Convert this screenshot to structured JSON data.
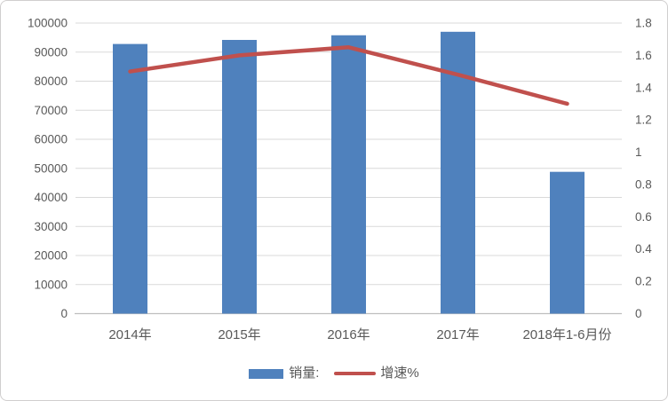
{
  "chart_data": {
    "type": "bar",
    "subtype": "combo-bar-line-dual-axis",
    "title": "",
    "categories": [
      "2014年",
      "2015年",
      "2016年",
      "2017年",
      "2018年1-6月份"
    ],
    "series": [
      {
        "name": "销量:",
        "chart_type": "bar",
        "axis": "left",
        "color": "#4f81bd",
        "values": [
          92800,
          94200,
          95800,
          97000,
          48800
        ]
      },
      {
        "name": "增速%",
        "chart_type": "line",
        "axis": "right",
        "color": "#c0504d",
        "values": [
          1.5,
          1.6,
          1.65,
          1.48,
          1.3
        ]
      }
    ],
    "left_axis": {
      "min": 0,
      "max": 100000,
      "step": 10000,
      "tick_labels": [
        "100000",
        "90000",
        "80000",
        "70000",
        "60000",
        "50000",
        "40000",
        "30000",
        "20000",
        "10000",
        "0"
      ]
    },
    "right_axis": {
      "min": 0,
      "max": 1.8,
      "step": 0.2,
      "tick_labels": [
        "1.8",
        "1.6",
        "1.4",
        "1.2",
        "1",
        "0.8",
        "0.6",
        "0.4",
        "0.2",
        "0"
      ]
    },
    "grid": true,
    "legend_position": "bottom"
  },
  "colors": {
    "bar": "#4f81bd",
    "line": "#c0504d",
    "gridline": "#d9d9d9",
    "axis_line": "#bfbfbf",
    "text": "#595959",
    "frame_border": "#d0cece"
  }
}
